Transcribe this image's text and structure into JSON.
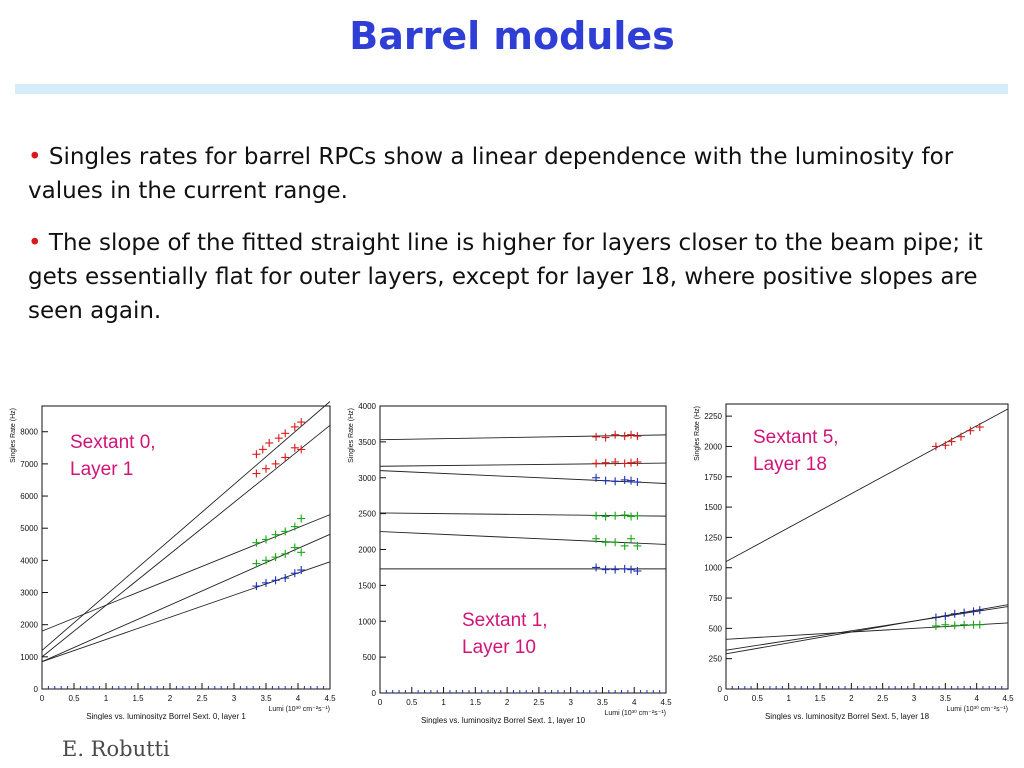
{
  "slide": {
    "title": "Barrel modules",
    "bullets": [
      "Singles rates for barrel RPCs show a linear dependence with the luminosity for values in the current range.",
      "The slope of the fitted straight line is higher for layers closer to the beam pipe; it gets essentially flat for outer layers, except for layer 18, where positive slopes are seen again."
    ],
    "bullet_marker": "•",
    "author": "E. Robutti",
    "colors": {
      "title": "#2f3fd6",
      "bullet": "#d81a1a",
      "label": "#d0147a",
      "rule": "#d6ecfb"
    }
  },
  "chart_data": [
    {
      "type": "scatter",
      "title": "Singles vs. luminosityz Borrel Sext. 0, layer 1",
      "label": "Sextant 0,\nLayer 1",
      "xlabel": "Lumi (10³⁰ cm⁻²s⁻¹)",
      "ylabel": "Singles Rate (Hz)",
      "xlim": [
        0,
        4.5
      ],
      "ylim": [
        0,
        8800
      ],
      "xticks": [
        0,
        0.5,
        1,
        1.5,
        2,
        2.5,
        3,
        3.5,
        4,
        4.5
      ],
      "yticks": [
        0,
        1000,
        2000,
        3000,
        4000,
        5000,
        6000,
        7000,
        8000
      ],
      "series": [
        {
          "color": "#d81a1a",
          "x": [
            3.35,
            3.45,
            3.55,
            3.7,
            3.8,
            3.95,
            4.05
          ],
          "y": [
            7300,
            7450,
            7650,
            7800,
            7950,
            8150,
            8300
          ],
          "fit": [
            1200,
            1720
          ]
        },
        {
          "color": "#d81a1a",
          "x": [
            3.35,
            3.5,
            3.65,
            3.8,
            3.95,
            4.05
          ],
          "y": [
            6700,
            6850,
            7000,
            7200,
            7500,
            7450
          ],
          "fit": [
            1000,
            1600
          ]
        },
        {
          "color": "#18a818",
          "x": [
            3.35,
            3.5,
            3.65,
            3.8,
            3.95,
            4.05
          ],
          "y": [
            4550,
            4650,
            4800,
            4900,
            5050,
            5300
          ],
          "fit": [
            1800,
            805
          ]
        },
        {
          "color": "#18a818",
          "x": [
            3.35,
            3.5,
            3.65,
            3.8,
            3.95,
            4.05
          ],
          "y": [
            3900,
            4000,
            4100,
            4200,
            4400,
            4250
          ],
          "fit": [
            850,
            880
          ]
        },
        {
          "color": "#1c2fb8",
          "x": [
            3.35,
            3.5,
            3.65,
            3.8,
            3.95,
            4.05
          ],
          "y": [
            3200,
            3300,
            3380,
            3450,
            3600,
            3700
          ],
          "fit": [
            850,
            690
          ]
        }
      ]
    },
    {
      "type": "scatter",
      "title": "Singles vs. luminosityz Borrel Sext. 1, layer 10",
      "label": "Sextant 1,\nLayer 10",
      "xlabel": "Lumi (10³⁰ cm⁻²s⁻¹)",
      "ylabel": "Singles Rate (Hz)",
      "xlim": [
        0,
        4.5
      ],
      "ylim": [
        0,
        4000
      ],
      "xticks": [
        0,
        0.5,
        1,
        1.5,
        2,
        2.5,
        3,
        3.5,
        4,
        4.5
      ],
      "yticks": [
        0,
        500,
        1000,
        1500,
        2000,
        2500,
        3000,
        3500,
        4000
      ],
      "series": [
        {
          "color": "#d81a1a",
          "x": [
            3.4,
            3.55,
            3.7,
            3.85,
            3.95,
            4.05
          ],
          "y": [
            3570,
            3560,
            3600,
            3580,
            3600,
            3580
          ],
          "fit": [
            3530,
            15
          ]
        },
        {
          "color": "#d81a1a",
          "x": [
            3.4,
            3.55,
            3.7,
            3.85,
            3.95,
            4.05
          ],
          "y": [
            3200,
            3210,
            3220,
            3200,
            3210,
            3220
          ],
          "fit": [
            3160,
            10
          ]
        },
        {
          "color": "#1c2fb8",
          "x": [
            3.4,
            3.55,
            3.7,
            3.85,
            3.95,
            4.05
          ],
          "y": [
            3000,
            2960,
            2950,
            2970,
            2960,
            2940
          ],
          "fit": [
            3100,
            -40
          ]
        },
        {
          "color": "#18a818",
          "x": [
            3.4,
            3.55,
            3.7,
            3.85,
            3.95,
            4.05
          ],
          "y": [
            2470,
            2460,
            2470,
            2480,
            2460,
            2470
          ],
          "fit": [
            2510,
            -10
          ]
        },
        {
          "color": "#18a818",
          "x": [
            3.4,
            3.55,
            3.7,
            3.85,
            3.95,
            4.05
          ],
          "y": [
            2150,
            2100,
            2100,
            2050,
            2150,
            2050
          ],
          "fit": [
            2250,
            -40
          ]
        },
        {
          "color": "#1c2fb8",
          "x": [
            3.4,
            3.55,
            3.7,
            3.85,
            3.95,
            4.05
          ],
          "y": [
            1750,
            1720,
            1720,
            1730,
            1720,
            1700
          ],
          "fit": [
            1730,
            0
          ]
        }
      ]
    },
    {
      "type": "scatter",
      "title": "Singles vs. luminosityz Borrel Sext. 5, layer 18",
      "label": "Sextant 5,\nLayer 18",
      "xlabel": "Lumi (10³⁰ cm⁻²s⁻¹)",
      "ylabel": "Singles Rate (Hz)",
      "xlim": [
        0,
        4.5
      ],
      "ylim": [
        0,
        2350
      ],
      "xticks": [
        0,
        0.5,
        1,
        1.5,
        2,
        2.5,
        3,
        3.5,
        4,
        4.5
      ],
      "yticks": [
        0,
        250,
        500,
        750,
        1000,
        1250,
        1500,
        1750,
        2000,
        2250
      ],
      "series": [
        {
          "color": "#d81a1a",
          "x": [
            3.35,
            3.5,
            3.6,
            3.75,
            3.9,
            4.05
          ],
          "y": [
            2000,
            2010,
            2040,
            2080,
            2130,
            2160
          ],
          "fit": [
            1050,
            280
          ]
        },
        {
          "color": "#1c2fb8",
          "x": [
            3.35,
            3.5,
            3.65,
            3.8,
            3.95,
            4.05
          ],
          "y": [
            590,
            600,
            620,
            630,
            640,
            650
          ],
          "fit": [
            320,
            80
          ]
        },
        {
          "color": "#18a818",
          "x": [
            3.35,
            3.5,
            3.65,
            3.8,
            3.95,
            4.05
          ],
          "y": [
            520,
            530,
            525,
            530,
            530,
            530
          ],
          "fit": [
            410,
            30
          ]
        },
        {
          "color": "#1c2fb8",
          "x": [],
          "y": [],
          "fit": [
            290,
            90
          ]
        }
      ]
    }
  ]
}
